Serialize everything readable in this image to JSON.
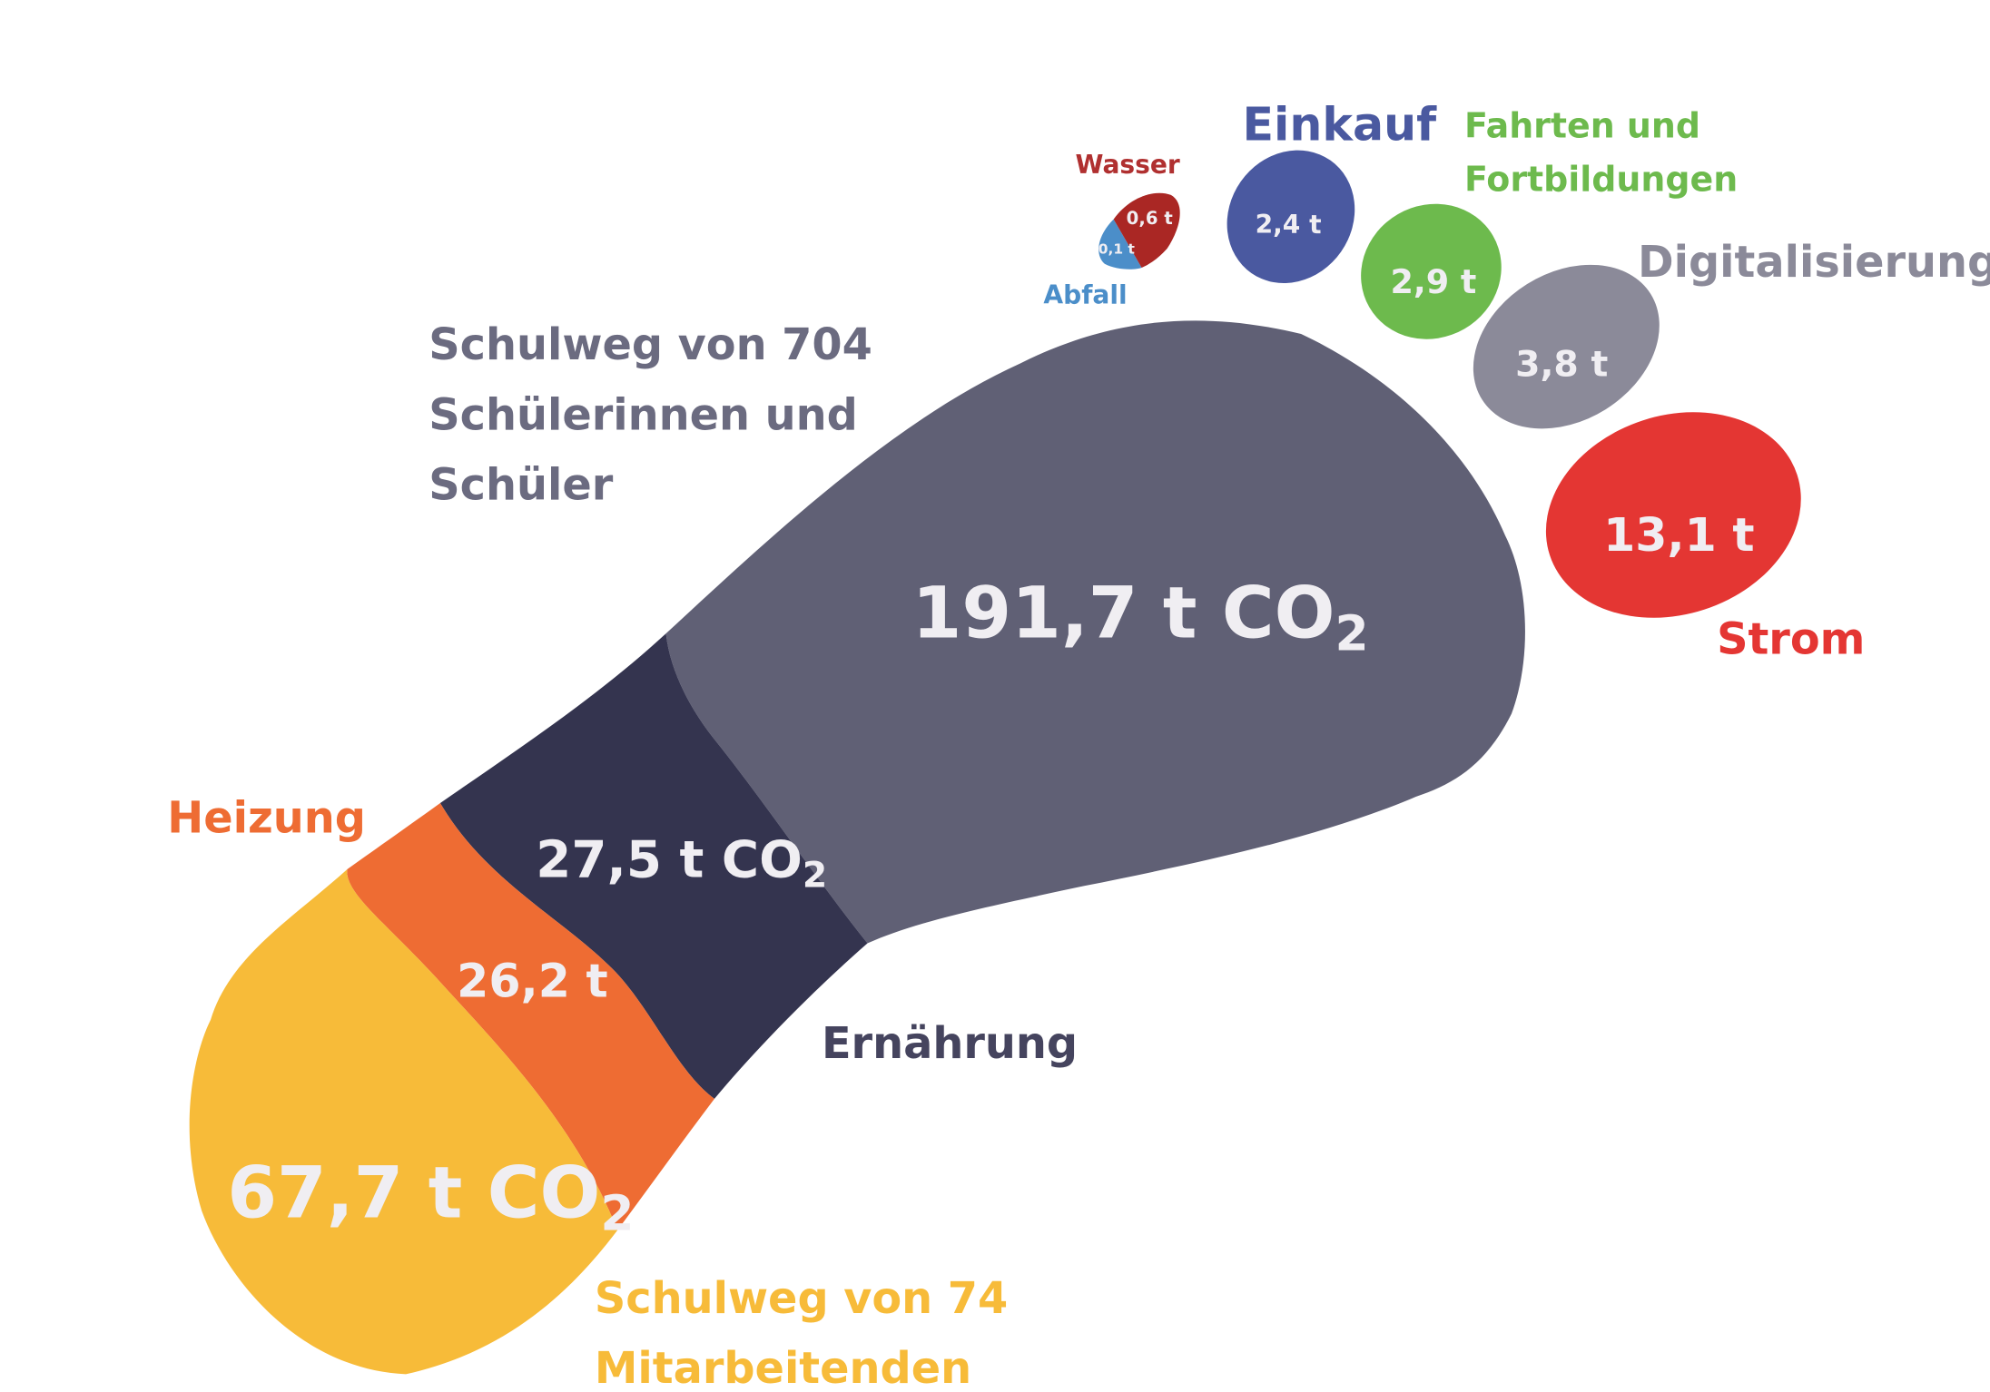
{
  "colors": {
    "schulweg_schueler": "#606075",
    "ernaehrung": "#34344f",
    "heizung": "#ee6c33",
    "schulweg_mitarbeitende": "#f7bb39",
    "wasser": "#aa2724",
    "abfall": "#4b8ec9",
    "einkauf": "#4a59a0",
    "fahrten": "#6dba4d",
    "digitalisierung": "#8b8a99",
    "strom": "#e43633"
  },
  "segments": {
    "schulweg_schueler": {
      "label_lines": [
        "Schulweg von 704",
        "Schülerinnen und",
        "Schüler"
      ],
      "value": "191,7 t CO",
      "sub": "2"
    },
    "ernaehrung": {
      "label": "Ernährung",
      "value": "27,5 t CO",
      "sub": "2"
    },
    "heizung": {
      "label": "Heizung",
      "value": "26,2 t"
    },
    "schulweg_mitarbeitende": {
      "label_lines": [
        "Schulweg von 74",
        "Mitarbeitenden"
      ],
      "value": "67,7 t CO",
      "sub": "2"
    },
    "wasser": {
      "label": "Wasser",
      "value": "0,6 t"
    },
    "abfall": {
      "label": "Abfall",
      "value": "0,1 t"
    },
    "einkauf": {
      "label": "Einkauf",
      "value": "2,4 t"
    },
    "fahrten": {
      "label_lines": [
        "Fahrten und",
        "Fortbildungen"
      ],
      "value": "2,9 t"
    },
    "digitalisierung": {
      "label": "Digitalisierung",
      "value": "3,8 t"
    },
    "strom": {
      "label": "Strom",
      "value": "13,1 t"
    }
  }
}
